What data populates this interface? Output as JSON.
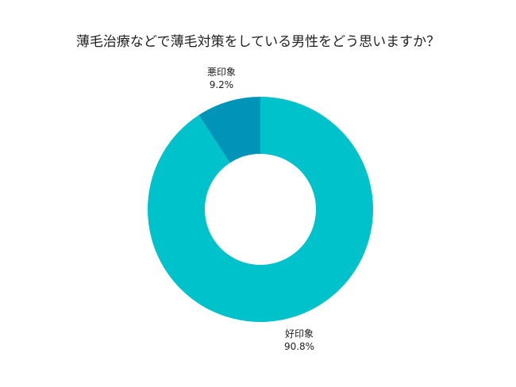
{
  "chart_data": {
    "type": "pie",
    "title": "薄毛治療などで薄毛対策をしている男性をどう思いますか？",
    "donut": true,
    "categories": [
      "好印象",
      "悪印象"
    ],
    "values": [
      90.8,
      9.2
    ],
    "value_labels": [
      "90.8%",
      "9.2%"
    ],
    "colors": [
      "#00c2cb",
      "#0095b8"
    ]
  }
}
